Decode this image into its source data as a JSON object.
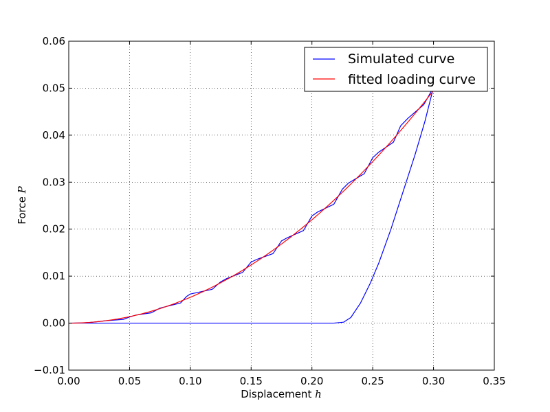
{
  "chart_data": {
    "type": "line",
    "xlabel": "Displacement",
    "xlabel_symbol": "h",
    "ylabel": "Force",
    "ylabel_symbol": "P",
    "xlim": [
      0,
      0.35
    ],
    "ylim": [
      -0.01,
      0.06
    ],
    "x_ticks": [
      "0.00",
      "0.05",
      "0.10",
      "0.15",
      "0.20",
      "0.25",
      "0.30",
      "0.35"
    ],
    "y_ticks": [
      "−0.01",
      "0.00",
      "0.01",
      "0.02",
      "0.03",
      "0.04",
      "0.05",
      "0.06"
    ],
    "grid": true,
    "legend_position": "top-right",
    "series": [
      {
        "name": "Simulated curve",
        "color": "#0000ff",
        "points": [
          [
            0,
            0
          ],
          [
            0.012,
            5e-05
          ],
          [
            0.02,
            0.0002
          ],
          [
            0.03,
            0.0005
          ],
          [
            0.045,
            0.0008
          ],
          [
            0.05,
            0.0013
          ],
          [
            0.055,
            0.0017
          ],
          [
            0.068,
            0.0022
          ],
          [
            0.075,
            0.0032
          ],
          [
            0.092,
            0.0043
          ],
          [
            0.097,
            0.0057
          ],
          [
            0.1,
            0.0062
          ],
          [
            0.118,
            0.0072
          ],
          [
            0.125,
            0.0088
          ],
          [
            0.13,
            0.0095
          ],
          [
            0.143,
            0.0108
          ],
          [
            0.15,
            0.013
          ],
          [
            0.155,
            0.0136
          ],
          [
            0.168,
            0.0148
          ],
          [
            0.175,
            0.0175
          ],
          [
            0.18,
            0.0182
          ],
          [
            0.193,
            0.0197
          ],
          [
            0.2,
            0.0228
          ],
          [
            0.205,
            0.0237
          ],
          [
            0.218,
            0.0253
          ],
          [
            0.225,
            0.0285
          ],
          [
            0.23,
            0.0298
          ],
          [
            0.243,
            0.0318
          ],
          [
            0.25,
            0.0352
          ],
          [
            0.255,
            0.0364
          ],
          [
            0.267,
            0.0385
          ],
          [
            0.273,
            0.042
          ],
          [
            0.279,
            0.0436
          ],
          [
            0.292,
            0.0465
          ],
          [
            0.3,
            0.0502
          ],
          [
            0.293,
            0.043
          ],
          [
            0.285,
            0.036
          ],
          [
            0.275,
            0.028
          ],
          [
            0.265,
            0.02
          ],
          [
            0.255,
            0.0128
          ],
          [
            0.248,
            0.0085
          ],
          [
            0.24,
            0.0043
          ],
          [
            0.232,
            0.0012
          ],
          [
            0.226,
            0.0002
          ],
          [
            0.218,
            0
          ],
          [
            0.15,
            0
          ],
          [
            0.1,
            0
          ],
          [
            0.05,
            0
          ],
          [
            0,
            0
          ]
        ]
      },
      {
        "name": "fitted loading curve",
        "color": "#ff0000",
        "model": "power",
        "coefficient": 0.55,
        "exponent": 2,
        "x_range": [
          0,
          0.3
        ]
      }
    ]
  }
}
